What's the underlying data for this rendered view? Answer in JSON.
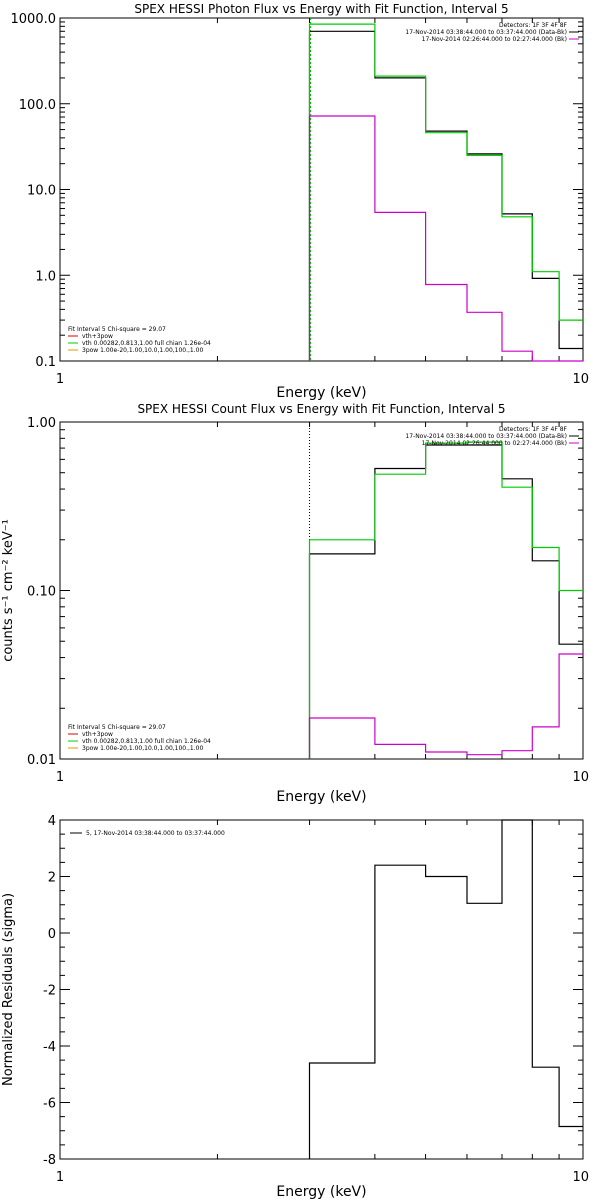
{
  "colors": {
    "black": "#000000",
    "green": "#00cc00",
    "magenta": "#cc00cc",
    "red": "#dd0000",
    "orange": "#dd9900"
  },
  "chart_data": [
    {
      "type": "line",
      "title": "SPEX HESSI Photon Flux vs Energy with Fit Function, Interval 5",
      "xlabel": "Energy (keV)",
      "ylabel": "",
      "xscale": "log",
      "yscale": "log",
      "xlim": [
        1,
        10
      ],
      "ylim": [
        0.1,
        1000
      ],
      "xticks": [
        "1",
        "10"
      ],
      "yticks": [
        {
          "v": 1000,
          "label": "1000.0"
        },
        {
          "v": 100,
          "label": "100.0"
        },
        {
          "v": 10,
          "label": "10.0"
        },
        {
          "v": 1,
          "label": "1.0"
        },
        {
          "v": 0.1,
          "label": "0.1"
        }
      ],
      "bin_edges": [
        3,
        4,
        5,
        6,
        7,
        8,
        9,
        10
      ],
      "series": [
        {
          "name": "Data",
          "color": "#000000",
          "values": [
            700,
            200,
            48,
            26,
            5.2,
            0.92,
            0.14
          ]
        },
        {
          "name": "vth+3pow",
          "color": "#00cc00",
          "values": [
            850,
            210,
            46,
            25,
            4.8,
            1.1,
            0.3
          ]
        },
        {
          "name": "Bkg",
          "color": "#cc00cc",
          "values": [
            72,
            5.4,
            0.78,
            0.37,
            0.13,
            0.098,
            0.1
          ]
        }
      ],
      "vline": 3,
      "legend_top": [
        {
          "text": "Detectors: 1F 3F 4F 8F",
          "color": "#000000"
        },
        {
          "text": "17-Nov-2014 03:38:44.000 to 03:37:44.000 (Data-Bk)",
          "color": "#000000"
        },
        {
          "text": "17-Nov-2014 02:26:44.000 to 02:27:44.000 (Bk)",
          "color": "#cc00cc"
        }
      ],
      "legend_bottom": [
        {
          "text": "Fit Interval 5   Chi-square = 29.07",
          "color": "#000000"
        },
        {
          "text": "vth+3pow",
          "color": "#dd0000"
        },
        {
          "text": "vth 0.00282,0.813,1.00   full chian 1.26e-04",
          "color": "#00cc00"
        },
        {
          "text": "3pow 1.00e-20,1.00,10.0,1.00,100.,1.00",
          "color": "#dd9900"
        }
      ]
    },
    {
      "type": "line",
      "title": "SPEX HESSI Count Flux vs Energy with Fit Function, Interval 5",
      "xlabel": "Energy (keV)",
      "ylabel": "counts s⁻¹ cm⁻² keV⁻¹",
      "xscale": "log",
      "yscale": "log",
      "xlim": [
        1,
        10
      ],
      "ylim": [
        0.01,
        1.0
      ],
      "xticks": [
        "1",
        "10"
      ],
      "yticks": [
        {
          "v": 1.0,
          "label": "1.00"
        },
        {
          "v": 0.1,
          "label": "0.10"
        },
        {
          "v": 0.01,
          "label": "0.01"
        }
      ],
      "bin_edges": [
        3,
        4,
        5,
        6,
        7,
        8,
        9,
        10
      ],
      "series": [
        {
          "name": "Data",
          "color": "#000000",
          "values": [
            0.165,
            0.53,
            0.73,
            0.73,
            0.46,
            0.15,
            0.048
          ]
        },
        {
          "name": "vth+3pow",
          "color": "#00cc00",
          "values": [
            0.2,
            0.49,
            0.75,
            0.76,
            0.41,
            0.18,
            0.1
          ]
        },
        {
          "name": "Bkg",
          "color": "#cc00cc",
          "values": [
            0.0175,
            0.0122,
            0.011,
            0.0106,
            0.0112,
            0.0155,
            0.042
          ]
        }
      ],
      "vline": 3,
      "legend_top": [
        {
          "text": "Detectors: 1F 3F 4F 8F",
          "color": "#000000"
        },
        {
          "text": "17-Nov-2014 03:38:44.000 to 03:37:44.000 (Data-Bk)",
          "color": "#000000"
        },
        {
          "text": "17-Nov-2014 02:26:44.000 to 02:27:44.000 (Bk)",
          "color": "#cc00cc"
        }
      ],
      "legend_bottom": [
        {
          "text": "Fit Interval 5   Chi-square = 29.07",
          "color": "#000000"
        },
        {
          "text": "vth+3pow",
          "color": "#dd0000"
        },
        {
          "text": "vth 0.00282,0.813,1.00   full chian 1.26e-04",
          "color": "#00cc00"
        },
        {
          "text": "3pow 1.00e-20,1.00,10.0,1.00,100.,1.00",
          "color": "#dd9900"
        }
      ]
    },
    {
      "type": "line",
      "title": "",
      "xlabel": "Energy (keV)",
      "ylabel": "Normalized Residuals (sigma)",
      "xscale": "log",
      "yscale": "linear",
      "xlim": [
        1,
        10
      ],
      "ylim": [
        -8,
        4
      ],
      "xticks": [
        "1",
        "10"
      ],
      "yticks": [
        {
          "v": 4,
          "label": "4"
        },
        {
          "v": 2,
          "label": "2"
        },
        {
          "v": 0,
          "label": "0"
        },
        {
          "v": -2,
          "label": "-2"
        },
        {
          "v": -4,
          "label": "-4"
        },
        {
          "v": -6,
          "label": "-6"
        },
        {
          "v": -8,
          "label": "-8"
        }
      ],
      "bin_edges": [
        3,
        4,
        5,
        6,
        7,
        8,
        9,
        10
      ],
      "series": [
        {
          "name": "5, 17-Nov-2014 03:38:44.000 to 03:37:44.000",
          "color": "#000000",
          "values": [
            -4.6,
            2.4,
            2.0,
            1.05,
            4.0,
            -4.75,
            -6.85
          ]
        }
      ],
      "legend_top": [
        {
          "text": "5, 17-Nov-2014 03:38:44.000 to 03:37:44.000",
          "color": "#000000"
        }
      ],
      "legend_bottom": []
    }
  ]
}
